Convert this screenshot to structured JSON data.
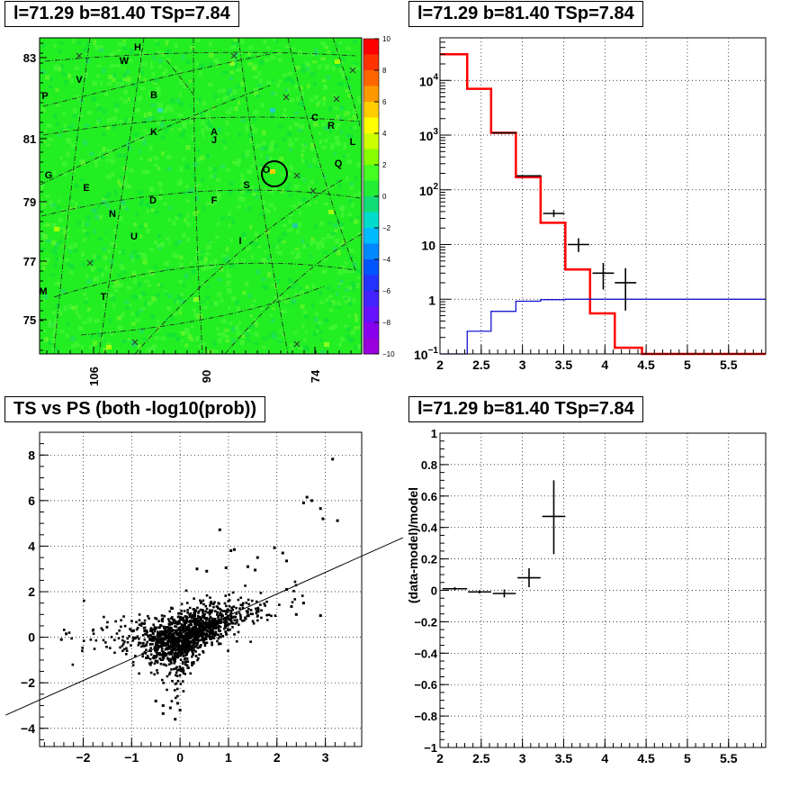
{
  "chart_data": [
    {
      "type": "heatmap",
      "title": "l=71.29 b=81.40 TSp=7.84",
      "y_ticks": [
        "83",
        "81",
        "79",
        "77",
        "75"
      ],
      "x_ticks": [
        "106",
        "90",
        "74"
      ],
      "colorbar_ticks": [
        "10",
        "8",
        "6",
        "4",
        "2",
        "0",
        "−2",
        "−4",
        "−6",
        "−8",
        "−10"
      ],
      "zlim": [
        -10,
        10
      ],
      "source_labels": [
        "H",
        "W",
        "V",
        "P",
        "B",
        "K",
        "A",
        "J",
        "C",
        "R",
        "L",
        "O",
        "Q",
        "G",
        "E",
        "D",
        "F",
        "S",
        "N",
        "U",
        "I",
        "M",
        "T"
      ],
      "colors": {
        "background": "#22ee22",
        "circle": "#000000"
      }
    },
    {
      "type": "line",
      "title": "l=71.29 b=81.40 TSp=7.84",
      "x_ticks": [
        "2",
        "2.5",
        "3",
        "3.5",
        "4",
        "4.5",
        "5",
        "5.5"
      ],
      "y_scale": "log",
      "ylim": [
        0.1,
        60000
      ],
      "xlim": [
        2,
        5.95
      ],
      "y_ticks": [
        {
          "base": "10",
          "exp": "−1"
        },
        {
          "base": "1",
          "exp": ""
        },
        {
          "base": "10",
          "exp": ""
        },
        {
          "base": "10",
          "exp": "2"
        },
        {
          "base": "10",
          "exp": "3"
        },
        {
          "base": "10",
          "exp": "4"
        }
      ],
      "series": [
        {
          "color": "#ff0000",
          "edges": [
            2.0,
            2.33,
            2.62,
            2.92,
            3.22,
            3.52,
            3.82,
            4.12,
            4.45,
            5.95
          ],
          "values": [
            30000,
            7000,
            1100,
            170,
            25,
            3.5,
            0.55,
            0.13,
            0.1
          ]
        },
        {
          "color": "#0000cc",
          "edges": [
            2.0,
            2.33,
            2.62,
            2.92,
            3.22,
            3.52,
            3.82,
            5.95
          ],
          "values": [
            0.1,
            0.26,
            0.6,
            0.92,
            0.98,
            1.0,
            1.0
          ]
        }
      ],
      "points": [
        {
          "x": 2.78,
          "y": 1100,
          "xerr": 0.15
        },
        {
          "x": 3.08,
          "y": 180,
          "xerr": 0.15
        },
        {
          "x": 3.38,
          "y": 37,
          "xerr": 0.13,
          "ylo": 32,
          "yhi": 43
        },
        {
          "x": 3.68,
          "y": 10,
          "xerr": 0.13,
          "ylo": 7.3,
          "yhi": 13
        },
        {
          "x": 3.98,
          "y": 3,
          "xerr": 0.13,
          "ylo": 1.5,
          "yhi": 4.6
        },
        {
          "x": 4.25,
          "y": 2,
          "xerr": 0.13,
          "ylo": 0.62,
          "yhi": 3.7
        }
      ]
    },
    {
      "type": "scatter",
      "title": "TS vs PS (both -log10(prob))",
      "xlim": [
        -2.9,
        3.75
      ],
      "ylim": [
        -4.8,
        9.0
      ],
      "x_ticks": [
        "−2",
        "−1",
        "0",
        "1",
        "2",
        "3"
      ],
      "y_ticks": [
        "−4",
        "−2",
        "0",
        "2",
        "4",
        "6",
        "8"
      ],
      "fit_line": {
        "slope": 0.95,
        "intercept": 0.0
      },
      "outliers": [
        [
          3.15,
          7.82
        ],
        [
          2.62,
          6.15
        ],
        [
          2.72,
          6.0
        ],
        [
          2.55,
          5.9
        ],
        [
          2.9,
          5.65
        ],
        [
          3.25,
          5.12
        ],
        [
          2.95,
          5.2
        ],
        [
          0.82,
          4.72
        ],
        [
          1.95,
          3.93
        ],
        [
          1.12,
          3.85
        ],
        [
          1.05,
          3.8
        ],
        [
          2.12,
          3.7
        ],
        [
          1.6,
          3.5
        ],
        [
          2.2,
          3.35
        ],
        [
          1.4,
          3.1
        ],
        [
          1.55,
          2.95
        ],
        [
          0.95,
          3.05
        ],
        [
          0.55,
          2.9
        ],
        [
          0.35,
          3.0
        ],
        [
          2.2,
          2.1
        ],
        [
          2.55,
          1.5
        ],
        [
          2.3,
          1.35
        ],
        [
          2.4,
          1.0
        ],
        [
          2.9,
          0.95
        ],
        [
          -0.35,
          -3.0
        ],
        [
          -0.35,
          -3.35
        ],
        [
          -0.1,
          -3.6
        ],
        [
          -0.2,
          -3.1
        ],
        [
          -0.5,
          -2.8
        ],
        [
          -2.45,
          -0.1
        ],
        [
          -2.35,
          0.15
        ],
        [
          -0.05,
          -2.9
        ],
        [
          0.0,
          -3.2
        ]
      ]
    },
    {
      "type": "line",
      "title": "l=71.29 b=81.40 TSp=7.84",
      "ylabel": "(data-model)/model",
      "xlim": [
        2,
        5.95
      ],
      "ylim": [
        -1,
        1
      ],
      "x_ticks": [
        "2",
        "2.5",
        "3",
        "3.5",
        "4",
        "4.5",
        "5",
        "5.5"
      ],
      "y_ticks": [
        "1",
        "0.8",
        "0.6",
        "0.4",
        "0.2",
        "0",
        "−0.2",
        "−0.4",
        "−0.6",
        "−0.8",
        "−1"
      ],
      "points": [
        {
          "x": 2.18,
          "y": 0.01,
          "xerr": 0.15,
          "ylo": 0.0,
          "yhi": 0.02
        },
        {
          "x": 2.48,
          "y": -0.01,
          "xerr": 0.14,
          "ylo": -0.02,
          "yhi": 0.0
        },
        {
          "x": 2.78,
          "y": -0.02,
          "xerr": 0.14,
          "ylo": -0.045,
          "yhi": 0.005
        },
        {
          "x": 3.08,
          "y": 0.08,
          "xerr": 0.14,
          "ylo": 0.02,
          "yhi": 0.14
        },
        {
          "x": 3.38,
          "y": 0.47,
          "xerr": 0.14,
          "ylo": 0.23,
          "yhi": 0.7
        }
      ]
    }
  ]
}
